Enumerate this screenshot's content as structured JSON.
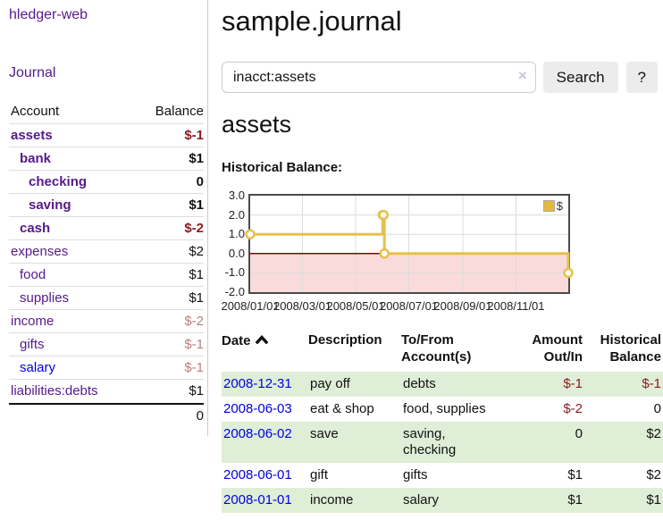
{
  "colors": {
    "link_purple": "#551a8b",
    "link_blue": "#0000e6",
    "negative_strong": "#8b1a1a",
    "negative_soft": "#bd7d7d",
    "series_gold": "#e6c04d",
    "negative_region_pink": "#f9dbdb",
    "zero_line": "#8b0000",
    "grid": "#dcdcdc",
    "chart_border": "#4a4a4a",
    "row_stripe_green": "#dfeed7"
  },
  "sidebar": {
    "app_title": "hledger-web",
    "nav_journal": "Journal",
    "table": {
      "col_account": "Account",
      "col_balance": "Balance",
      "rows": [
        {
          "name": "assets",
          "depth": 1,
          "balance": "$-1",
          "bold": true,
          "negative": "strong",
          "link": "purple"
        },
        {
          "name": "bank",
          "depth": 2,
          "balance": "$1",
          "bold": true,
          "negative": null,
          "link": "purple"
        },
        {
          "name": "checking",
          "depth": 3,
          "balance": "0",
          "bold": true,
          "negative": null,
          "link": "purple"
        },
        {
          "name": "saving",
          "depth": 3,
          "balance": "$1",
          "bold": true,
          "negative": null,
          "link": "purple"
        },
        {
          "name": "cash",
          "depth": 2,
          "balance": "$-2",
          "bold": true,
          "negative": "strong",
          "link": "purple"
        },
        {
          "name": "expenses",
          "depth": 1,
          "balance": "$2",
          "bold": false,
          "negative": null,
          "link": "purple"
        },
        {
          "name": "food",
          "depth": 2,
          "balance": "$1",
          "bold": false,
          "negative": null,
          "link": "purple"
        },
        {
          "name": "supplies",
          "depth": 2,
          "balance": "$1",
          "bold": false,
          "negative": null,
          "link": "purple"
        },
        {
          "name": "income",
          "depth": 1,
          "balance": "$-2",
          "bold": false,
          "negative": "soft",
          "link": "purple"
        },
        {
          "name": "gifts",
          "depth": 2,
          "balance": "$-1",
          "bold": false,
          "negative": "soft",
          "link": "purple"
        },
        {
          "name": "salary",
          "depth": 2,
          "balance": "$-1",
          "bold": false,
          "negative": "soft",
          "link": "blue"
        },
        {
          "name": "liabilities:debts",
          "depth": 1,
          "balance": "$1",
          "bold": false,
          "negative": null,
          "link": "purple"
        }
      ],
      "total": "0"
    }
  },
  "main": {
    "title": "sample.journal",
    "search": {
      "value": "inacct:assets",
      "clear_icon": "×",
      "button": "Search",
      "help_button": "?"
    },
    "account_heading": "assets",
    "section_label": "Historical Balance:"
  },
  "chart_data": {
    "type": "line",
    "style": "step",
    "title": "Historical Balance",
    "series": [
      {
        "name": "$",
        "color": "#e6c04d",
        "points": [
          [
            "2008-01-01",
            1
          ],
          [
            "2008-06-01",
            2
          ],
          [
            "2008-06-02",
            2
          ],
          [
            "2008-06-03",
            0
          ],
          [
            "2008-12-31",
            -1
          ]
        ]
      }
    ],
    "x_range": [
      "2008-01-01",
      "2008-12-31"
    ],
    "x_ticks": [
      "2008/01/01",
      "2008/03/01",
      "2008/05/01",
      "2008/07/01",
      "2008/09/01",
      "2008/11/01"
    ],
    "y_ticks": [
      3.0,
      2.0,
      1.0,
      0.0,
      -1.0,
      -2.0
    ],
    "ylim": [
      -2,
      3
    ],
    "grid": true,
    "negative_region_color": "#f9dbdb",
    "legend": {
      "label": "$",
      "position": "top-right"
    }
  },
  "register": {
    "headers": {
      "date": "Date",
      "description": "Description",
      "account_l1": "To/From",
      "account_l2": "Account(s)",
      "amount_l1": "Amount",
      "amount_l2": "Out/In",
      "balance_l1": "Historical",
      "balance_l2": "Balance"
    },
    "rows": [
      {
        "date": "2008-12-31",
        "description": "pay off",
        "accounts": [
          "debts"
        ],
        "amount": "$-1",
        "amount_negative": true,
        "balance": "$-1",
        "balance_negative": true
      },
      {
        "date": "2008-06-03",
        "description": "eat & shop",
        "accounts": [
          "food, supplies"
        ],
        "amount": "$-2",
        "amount_negative": true,
        "balance": "0",
        "balance_negative": false
      },
      {
        "date": "2008-06-02",
        "description": "save",
        "accounts": [
          "saving,",
          "checking"
        ],
        "amount": "0",
        "amount_negative": false,
        "balance": "$2",
        "balance_negative": false
      },
      {
        "date": "2008-06-01",
        "description": "gift",
        "accounts": [
          "gifts"
        ],
        "amount": "$1",
        "amount_negative": false,
        "balance": "$2",
        "balance_negative": false
      },
      {
        "date": "2008-01-01",
        "description": "income",
        "accounts": [
          "salary"
        ],
        "amount": "$1",
        "amount_negative": false,
        "balance": "$1",
        "balance_negative": false
      }
    ]
  }
}
